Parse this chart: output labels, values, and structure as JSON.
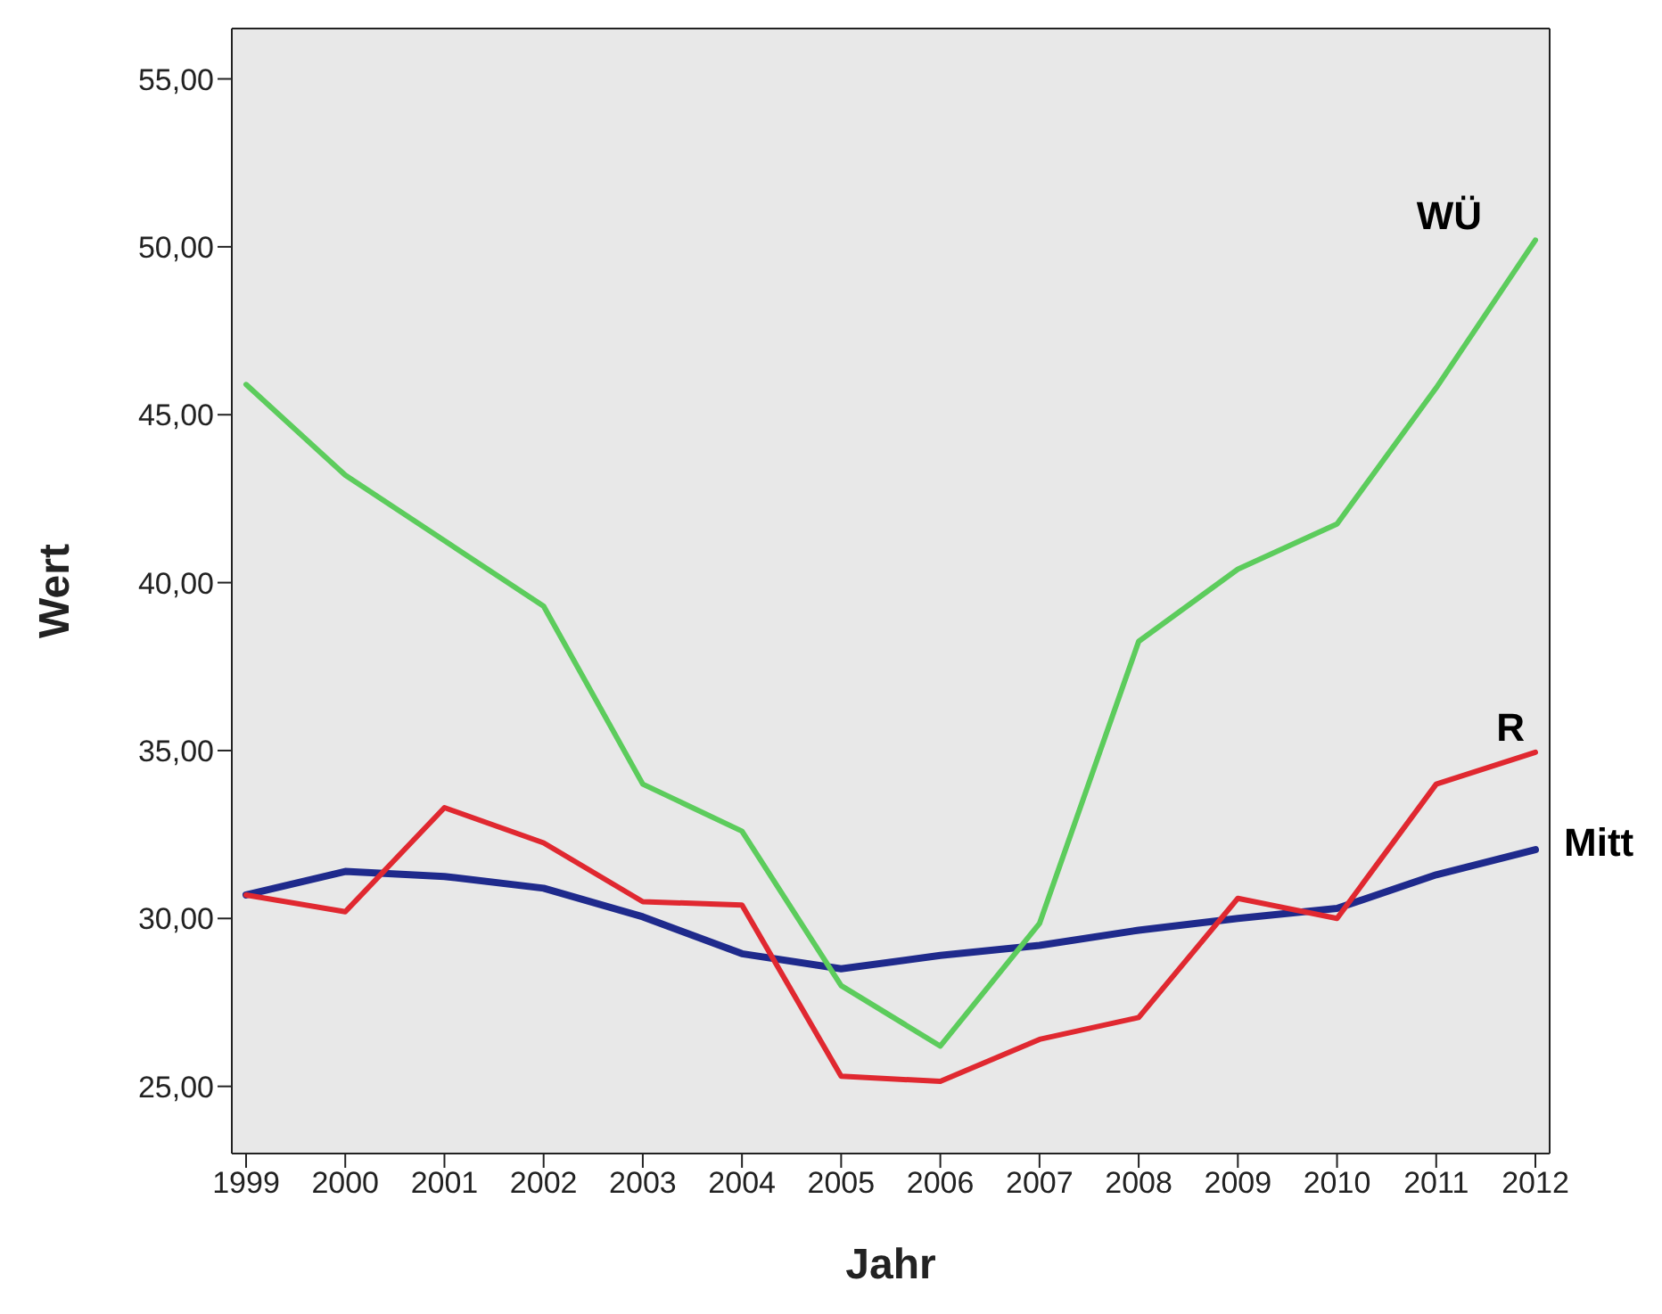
{
  "chart_data": {
    "type": "line",
    "xlabel": "Jahr",
    "ylabel": "Wert",
    "categories": [
      "1999",
      "2000",
      "2001",
      "2002",
      "2003",
      "2004",
      "2005",
      "2006",
      "2007",
      "2008",
      "2009",
      "2010",
      "2011",
      "2012"
    ],
    "ylim": [
      23,
      56.5
    ],
    "yticks": [
      {
        "value": 25,
        "label": "25,00"
      },
      {
        "value": 30,
        "label": "30,00"
      },
      {
        "value": 35,
        "label": "35,00"
      },
      {
        "value": 40,
        "label": "40,00"
      },
      {
        "value": 45,
        "label": "45,00"
      },
      {
        "value": 50,
        "label": "50,00"
      },
      {
        "value": 55,
        "label": "55,00"
      }
    ],
    "grid": false,
    "marker": "none",
    "line_style": "solid",
    "series": [
      {
        "name": "Mitt",
        "color": "#1f2a8c",
        "values": [
          30.7,
          31.4,
          31.25,
          30.9,
          30.05,
          28.95,
          28.5,
          28.9,
          29.2,
          29.65,
          30.0,
          30.3,
          31.3,
          32.05
        ]
      },
      {
        "name": "R",
        "color": "#e02830",
        "values": [
          30.7,
          30.2,
          33.3,
          32.25,
          30.5,
          30.4,
          25.3,
          25.15,
          26.4,
          27.05,
          30.6,
          30.0,
          34.0,
          34.95
        ]
      },
      {
        "name": "WÜ",
        "color": "#5ccc5c",
        "values": [
          45.9,
          43.2,
          41.25,
          39.3,
          34.0,
          32.6,
          28.0,
          26.2,
          29.85,
          38.25,
          40.4,
          41.75,
          45.8,
          50.2
        ]
      }
    ]
  }
}
